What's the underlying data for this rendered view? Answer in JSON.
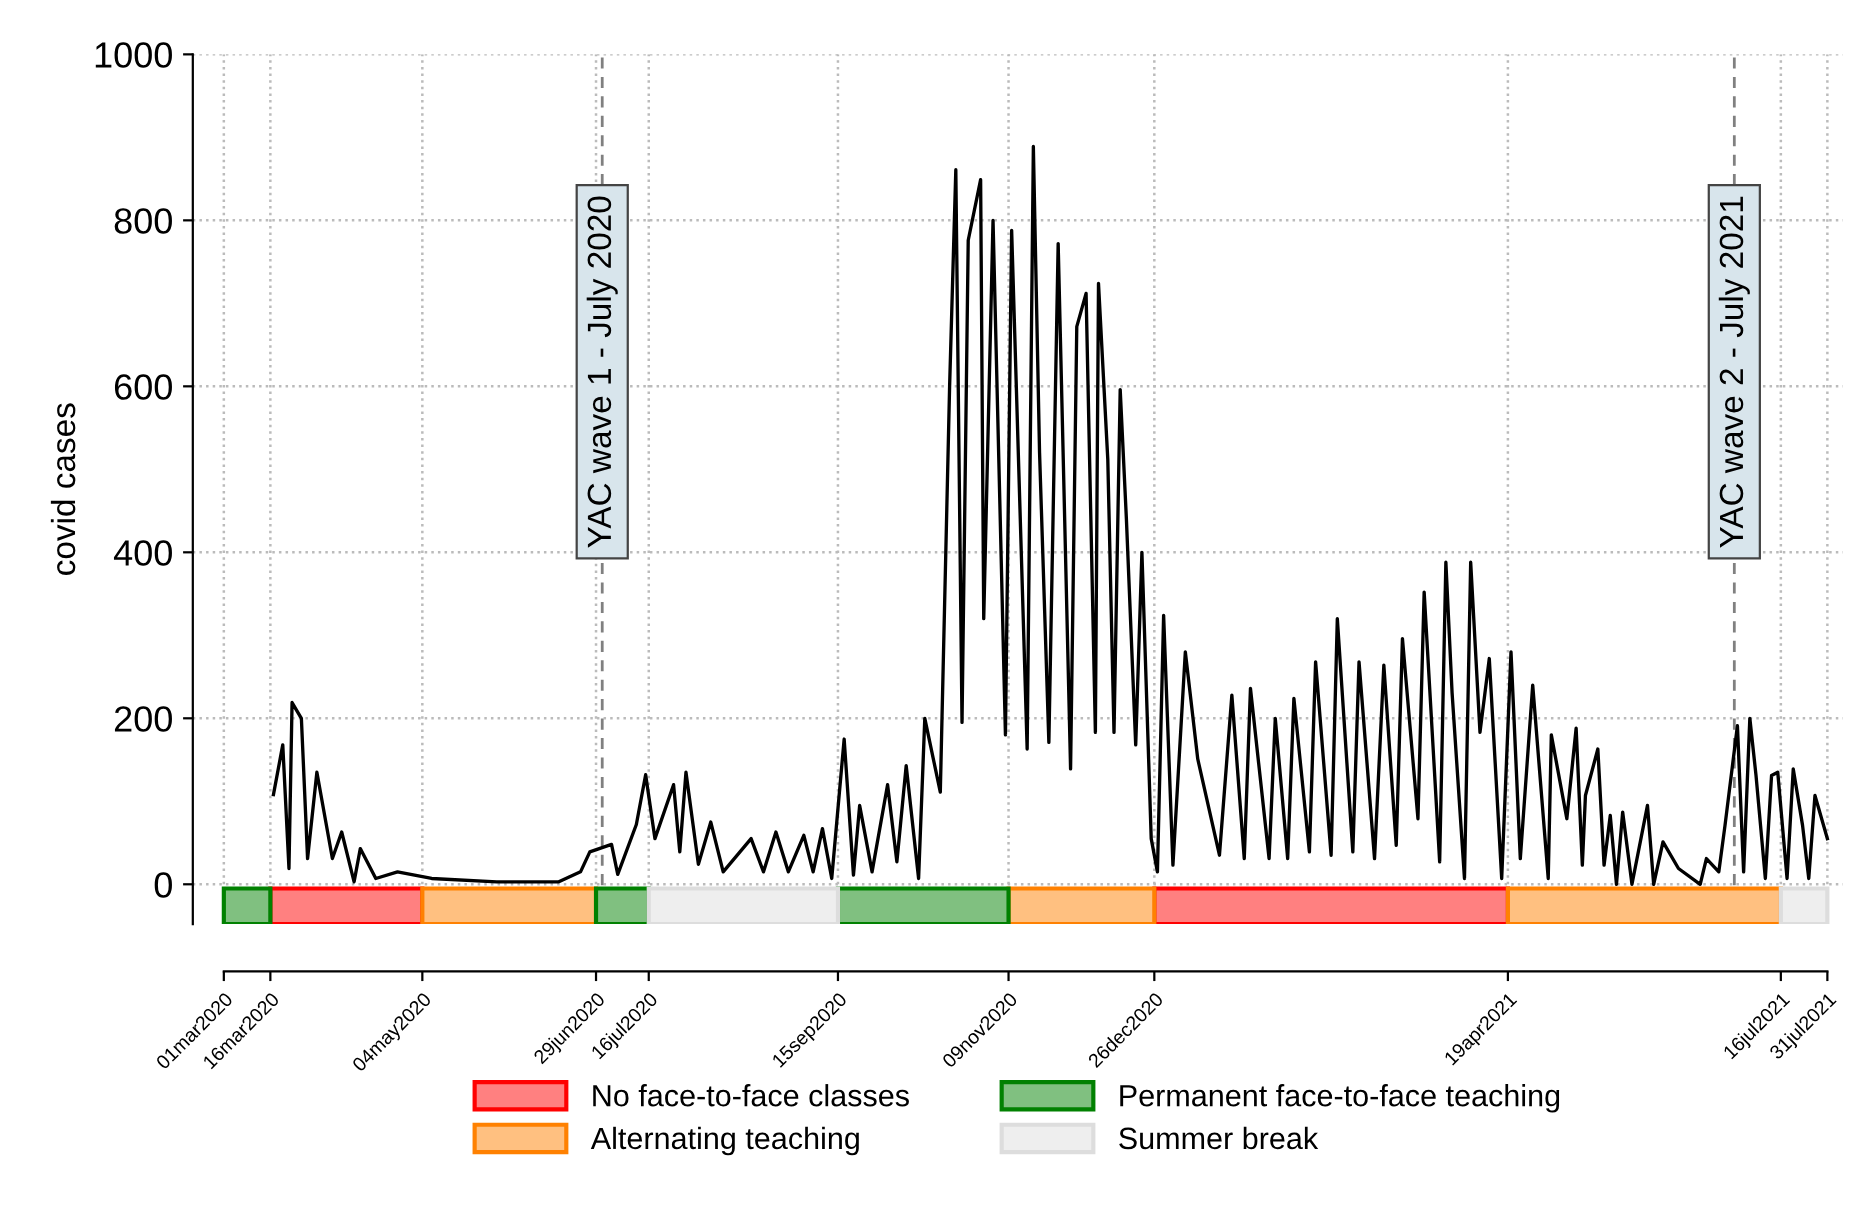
{
  "chart_data": {
    "type": "line",
    "ylabel": "covid cases",
    "x": [
      "2020-03-17",
      "2020-03-20",
      "2020-03-22",
      "2020-03-23",
      "2020-03-26",
      "2020-03-28",
      "2020-03-31",
      "2020-04-05",
      "2020-04-08",
      "2020-04-12",
      "2020-04-14",
      "2020-04-19",
      "2020-04-26",
      "2020-05-07",
      "2020-05-28",
      "2020-06-17",
      "2020-06-24",
      "2020-06-27",
      "2020-07-04",
      "2020-07-06",
      "2020-07-12",
      "2020-07-15",
      "2020-07-18",
      "2020-07-24",
      "2020-07-26",
      "2020-07-28",
      "2020-08-01",
      "2020-08-05",
      "2020-08-09",
      "2020-08-18",
      "2020-08-22",
      "2020-08-26",
      "2020-08-30",
      "2020-09-04",
      "2020-09-07",
      "2020-09-10",
      "2020-09-13",
      "2020-09-17",
      "2020-09-20",
      "2020-09-22",
      "2020-09-26",
      "2020-10-01",
      "2020-10-04",
      "2020-10-07",
      "2020-10-11",
      "2020-10-13",
      "2020-10-18",
      "2020-10-21",
      "2020-10-23",
      "2020-10-25",
      "2020-10-27",
      "2020-10-31",
      "2020-11-01",
      "2020-11-04",
      "2020-11-08",
      "2020-11-10",
      "2020-11-15",
      "2020-11-17",
      "2020-11-19",
      "2020-11-22",
      "2020-11-25",
      "2020-11-29",
      "2020-12-01",
      "2020-12-04",
      "2020-12-07",
      "2020-12-08",
      "2020-12-11",
      "2020-12-13",
      "2020-12-15",
      "2020-12-17",
      "2020-12-20",
      "2020-12-22",
      "2020-12-25",
      "2020-12-27",
      "2020-12-29",
      "2021-01-01",
      "2021-01-05",
      "2021-01-09",
      "2021-01-16",
      "2021-01-20",
      "2021-01-24",
      "2021-01-26",
      "2021-02-01",
      "2021-02-03",
      "2021-02-07",
      "2021-02-09",
      "2021-02-14",
      "2021-02-16",
      "2021-02-21",
      "2021-02-23",
      "2021-02-28",
      "2021-03-02",
      "2021-03-07",
      "2021-03-10",
      "2021-03-14",
      "2021-03-16",
      "2021-03-21",
      "2021-03-23",
      "2021-03-28",
      "2021-03-30",
      "2021-04-01",
      "2021-04-05",
      "2021-04-07",
      "2021-04-10",
      "2021-04-13",
      "2021-04-17",
      "2021-04-20",
      "2021-04-23",
      "2021-04-27",
      "2021-05-02",
      "2021-05-03",
      "2021-05-08",
      "2021-05-11",
      "2021-05-13",
      "2021-05-14",
      "2021-05-18",
      "2021-05-20",
      "2021-05-22",
      "2021-05-24",
      "2021-05-26",
      "2021-05-29",
      "2021-06-03",
      "2021-06-05",
      "2021-06-08",
      "2021-06-13",
      "2021-06-20",
      "2021-06-22",
      "2021-06-26",
      "2021-06-28",
      "2021-07-02",
      "2021-07-04",
      "2021-07-06",
      "2021-07-08",
      "2021-07-11",
      "2021-07-13",
      "2021-07-15",
      "2021-07-18",
      "2021-07-20",
      "2021-07-23",
      "2021-07-25",
      "2021-07-27",
      "2021-07-31"
    ],
    "series": [
      {
        "color": "#000000",
        "values": [
          108,
          168,
          19,
          219,
          200,
          31,
          135,
          31,
          63,
          3,
          43,
          7,
          15,
          7,
          3,
          3,
          15,
          39,
          48,
          12,
          72,
          132,
          55,
          120,
          39,
          135,
          24,
          75,
          15,
          55,
          15,
          63,
          15,
          59,
          15,
          67,
          7,
          175,
          11,
          95,
          15,
          120,
          27,
          143,
          7,
          200,
          111,
          600,
          861,
          195,
          776,
          849,
          320,
          800,
          180,
          788,
          163,
          889,
          520,
          171,
          772,
          139,
          672,
          712,
          183,
          724,
          512,
          183,
          596,
          440,
          168,
          400,
          55,
          15,
          324,
          23,
          280,
          151,
          35,
          228,
          31,
          236,
          31,
          200,
          31,
          224,
          39,
          268,
          35,
          320,
          39,
          268,
          31,
          264,
          47,
          296,
          79,
          352,
          27,
          388,
          231,
          7,
          388,
          183,
          272,
          7,
          280,
          31,
          240,
          7,
          180,
          79,
          188,
          23,
          107,
          163,
          23,
          83,
          0,
          87,
          0,
          95,
          0,
          51,
          19,
          0,
          31,
          15,
          71,
          191,
          15,
          200,
          131,
          7,
          131,
          135,
          7,
          139,
          71,
          7,
          107,
          55
        ]
      }
    ],
    "xlim": [
      "2020-02-20",
      "2021-08-05"
    ],
    "xticks": [
      {
        "value": "2020-03-01",
        "label": "01mar2020"
      },
      {
        "value": "2020-03-16",
        "label": "16mar2020"
      },
      {
        "value": "2020-05-04",
        "label": "04may2020"
      },
      {
        "value": "2020-06-29",
        "label": "29jun2020"
      },
      {
        "value": "2020-07-16",
        "label": "16jul2020"
      },
      {
        "value": "2020-09-15",
        "label": "15sep2020"
      },
      {
        "value": "2020-11-09",
        "label": "09nov2020"
      },
      {
        "value": "2020-12-26",
        "label": "26dec2020"
      },
      {
        "value": "2021-04-19",
        "label": "19apr2021"
      },
      {
        "value": "2021-07-16",
        "label": "16jul2021"
      },
      {
        "value": "2021-07-31",
        "label": "31jul2021"
      }
    ],
    "ylim": [
      -48,
      1000
    ],
    "yticks": [
      0,
      200,
      400,
      600,
      800,
      1000
    ],
    "grid": true,
    "line_style": "solid",
    "legend": "bottom",
    "ref_lines": [
      {
        "axis": "x",
        "value": "2020-07-01",
        "label": "YAC wave 1 - July 2020",
        "color": "#808080",
        "line_style": "dashed"
      },
      {
        "axis": "x",
        "value": "2021-07-01",
        "label": "YAC wave 2 - July 2021",
        "color": "#808080",
        "line_style": "dashed"
      }
    ],
    "bands": [
      {
        "axis": "x",
        "from": "2020-03-16",
        "to": "2020-05-04",
        "label": "No face-to-face classes",
        "color": "#ff8080"
      },
      {
        "axis": "x",
        "from": "2020-12-26",
        "to": "2021-04-19",
        "color": "#ff8080"
      },
      {
        "axis": "x",
        "from": "2020-05-04",
        "to": "2020-06-29",
        "label": "Alternating teaching",
        "color": "#ffc080"
      },
      {
        "axis": "x",
        "from": "2020-11-09",
        "to": "2020-12-26",
        "color": "#ffc080"
      },
      {
        "axis": "x",
        "from": "2021-04-19",
        "to": "2021-07-16",
        "color": "#ffc080"
      },
      {
        "axis": "x",
        "from": "2020-03-01",
        "to": "2020-03-16",
        "label": "Permanent face-to-face teaching",
        "color": "#80c080"
      },
      {
        "axis": "x",
        "from": "2020-06-29",
        "to": "2020-07-16",
        "color": "#80c080"
      },
      {
        "axis": "x",
        "from": "2020-09-15",
        "to": "2020-11-09",
        "color": "#80c080"
      },
      {
        "axis": "x",
        "from": "2020-07-16",
        "to": "2020-09-15",
        "label": "Summer break",
        "color": "#eeeeee"
      },
      {
        "axis": "x",
        "from": "2021-07-16",
        "to": "2021-07-31",
        "color": "#eeeeee"
      }
    ]
  }
}
